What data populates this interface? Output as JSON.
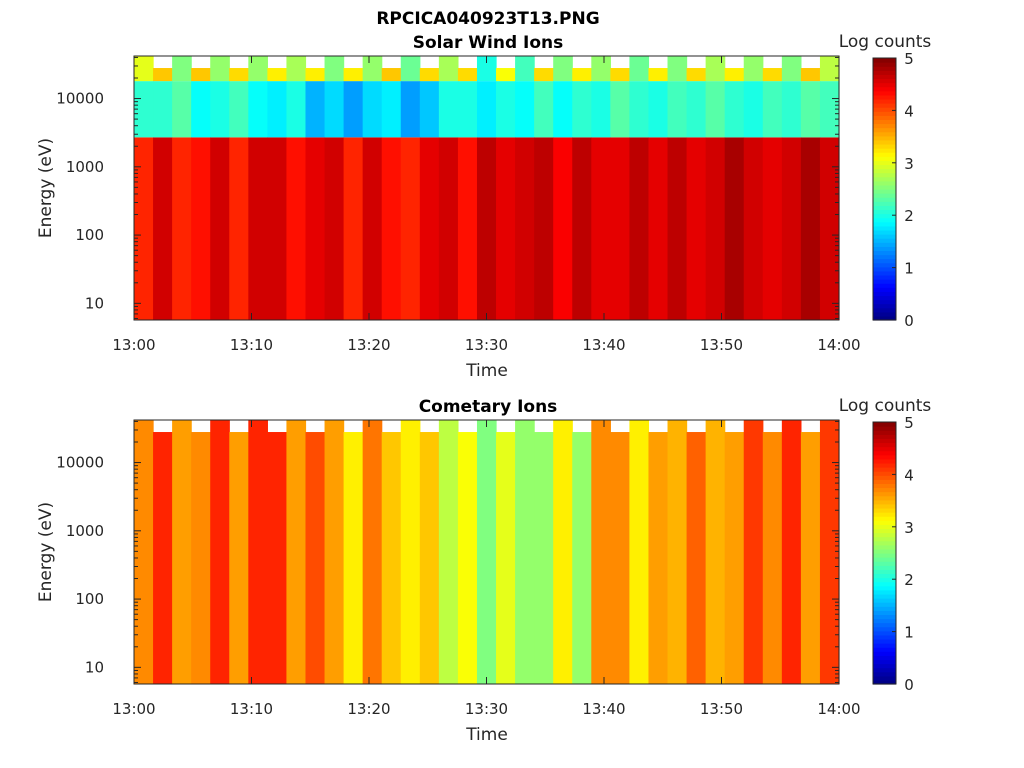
{
  "figure": {
    "filename_title": "RPCICA040923T13.PNG"
  },
  "chart_data": [
    {
      "type": "heatmap",
      "title": "Solar Wind Ions",
      "xlabel": "Time",
      "ylabel": "Energy (eV)",
      "x_ticks": [
        "13:00",
        "13:10",
        "13:20",
        "13:30",
        "13:40",
        "13:50",
        "14:00"
      ],
      "y_ticks": [
        "10",
        "100",
        "1000",
        "10000"
      ],
      "y_scale": "log",
      "colorbar": {
        "label": "Log counts",
        "range": [
          0,
          5
        ],
        "ticks": [
          "0",
          "1",
          "2",
          "3",
          "4",
          "5"
        ],
        "colormap": "jet"
      },
      "time_bins_per_hour": 37,
      "low_energy_log_counts": [
        4.2,
        4.6,
        4.2,
        4.3,
        4.6,
        4.2,
        4.6,
        4.6,
        4.3,
        4.5,
        4.6,
        4.2,
        4.6,
        4.3,
        4.2,
        4.5,
        4.6,
        4.3,
        4.7,
        4.5,
        4.6,
        4.7,
        4.4,
        4.7,
        4.5,
        4.5,
        4.7,
        4.5,
        4.7,
        4.5,
        4.6,
        4.8,
        4.6,
        4.5,
        4.6,
        4.8,
        4.6
      ],
      "high_energy_log_counts": [
        2.1,
        2.1,
        2.3,
        1.9,
        2.0,
        2.2,
        1.9,
        1.8,
        2.0,
        1.5,
        1.7,
        1.4,
        1.7,
        1.8,
        1.4,
        1.6,
        2.0,
        2.0,
        1.8,
        2.0,
        1.9,
        2.2,
        1.9,
        2.1,
        2.0,
        2.3,
        2.1,
        2.0,
        2.2,
        2.1,
        2.3,
        2.1,
        2.0,
        2.2,
        2.1,
        2.3,
        2.2
      ],
      "top_band_log_counts": [
        3.0,
        3.4,
        2.5,
        3.4,
        2.6,
        3.3,
        2.6,
        3.2,
        2.7,
        3.2,
        2.5,
        3.2,
        2.6,
        3.4,
        2.4,
        3.3,
        2.7,
        3.3,
        2.0,
        3.1,
        2.2,
        3.3,
        2.5,
        3.2,
        2.6,
        3.3,
        2.4,
        3.2,
        2.5,
        3.3,
        2.7,
        3.2,
        2.6,
        3.3,
        2.5,
        3.4,
        2.8
      ]
    },
    {
      "type": "heatmap",
      "title": "Cometary Ions",
      "xlabel": "Time",
      "ylabel": "Energy (eV)",
      "x_ticks": [
        "13:00",
        "13:10",
        "13:20",
        "13:30",
        "13:40",
        "13:50",
        "14:00"
      ],
      "y_ticks": [
        "10",
        "100",
        "1000",
        "10000"
      ],
      "y_scale": "log",
      "colorbar": {
        "label": "Log counts",
        "range": [
          0,
          5
        ],
        "ticks": [
          "0",
          "1",
          "2",
          "3",
          "4",
          "5"
        ],
        "colormap": "jet"
      },
      "time_bins_per_hour": 37,
      "log_counts": [
        3.7,
        4.2,
        3.6,
        3.7,
        4.2,
        3.6,
        4.2,
        4.2,
        3.6,
        4.0,
        3.6,
        3.2,
        3.8,
        3.4,
        3.2,
        3.4,
        2.8,
        3.1,
        2.5,
        3.0,
        2.6,
        2.6,
        3.2,
        2.6,
        3.7,
        3.7,
        3.2,
        3.6,
        3.5,
        3.9,
        3.5,
        3.6,
        4.1,
        3.7,
        4.2,
        3.6,
        4.1
      ]
    }
  ]
}
